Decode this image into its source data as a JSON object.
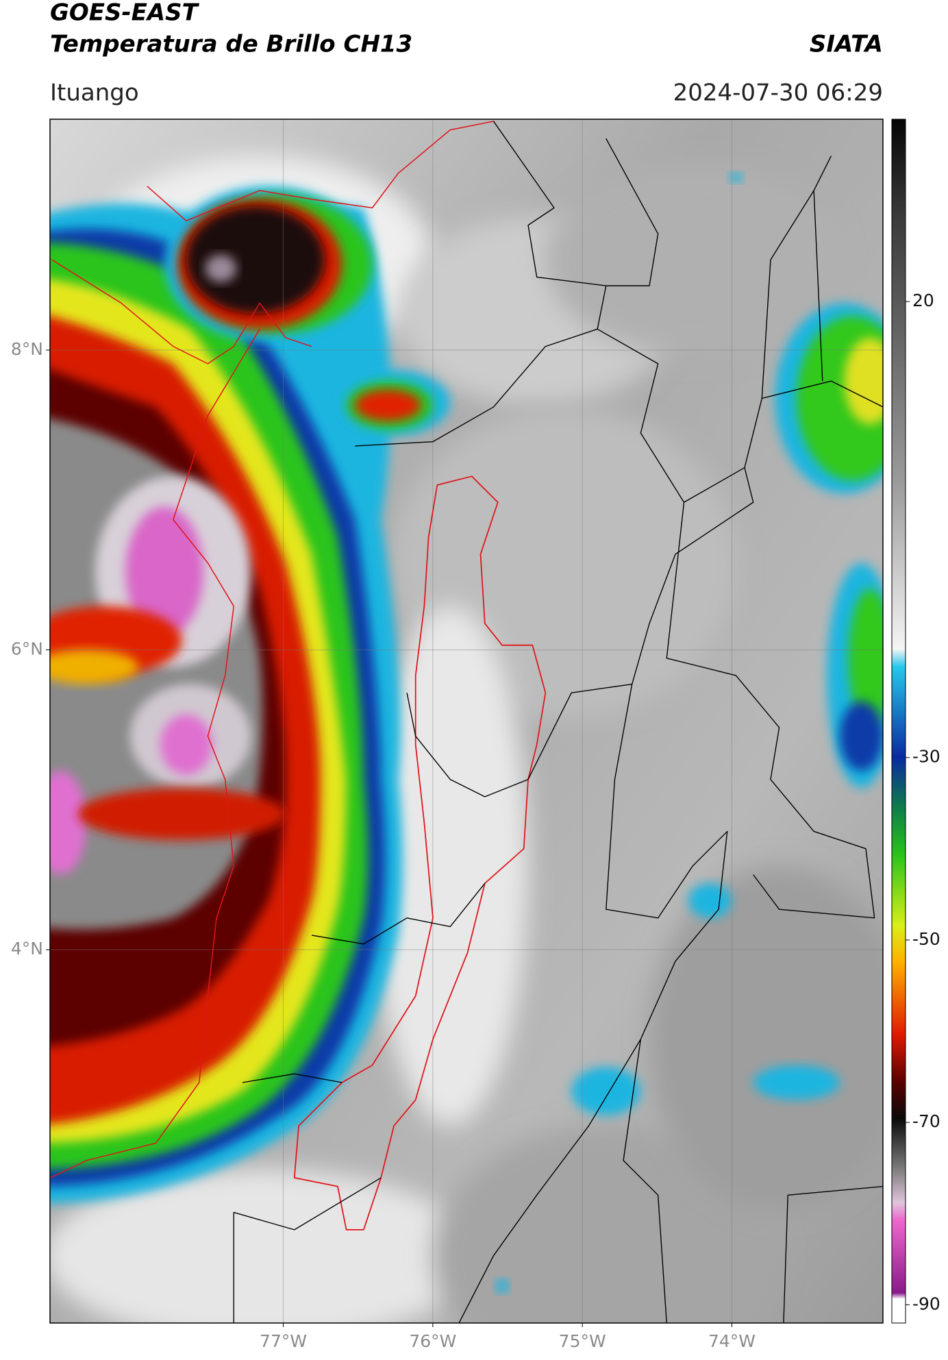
{
  "header": {
    "title_line1": "GOES-EAST",
    "title_line2": "Temperatura de Brillo CH13",
    "agency": "SIATA",
    "location": "Ituango",
    "datetime": "2024-07-30 06:29"
  },
  "map": {
    "lon_lim": [
      -78.56,
      -72.99
    ],
    "lat_lim": [
      1.51,
      9.54
    ],
    "lat_ticks": [
      {
        "value": 8,
        "label": "8°N"
      },
      {
        "value": 6,
        "label": "6°N"
      },
      {
        "value": 4,
        "label": "4°N"
      }
    ],
    "lon_ticks": [
      {
        "value": -77,
        "label": "77°W"
      },
      {
        "value": -76,
        "label": "76°W"
      },
      {
        "value": -75,
        "label": "75°W"
      },
      {
        "value": -74,
        "label": "74°W"
      }
    ],
    "grid": true
  },
  "colorbar": {
    "lim": [
      -92,
      40
    ],
    "ticks": [
      20,
      -30,
      -50,
      -70,
      -90
    ]
  }
}
